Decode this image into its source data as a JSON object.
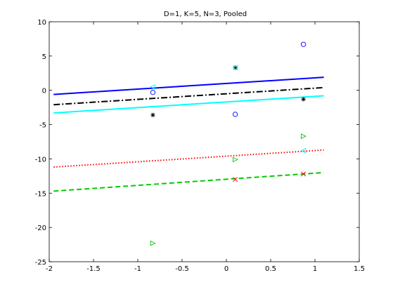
{
  "chart_data": {
    "type": "scatter",
    "title": "D=1, K=5, N=3, Pooled",
    "xlabel": "",
    "ylabel": "",
    "xlim": [
      -2,
      1.5
    ],
    "ylim": [
      -25,
      10
    ],
    "xticks": [
      -2,
      -1.5,
      -1,
      -0.5,
      0,
      0.5,
      1,
      1.5
    ],
    "yticks": [
      -25,
      -20,
      -15,
      -10,
      -5,
      0,
      5,
      10
    ],
    "xtick_labels": [
      "-2",
      "-1.5",
      "-1",
      "-0.5",
      "0",
      "0.5",
      "1",
      "1.5"
    ],
    "ytick_labels": [
      "-25",
      "-20",
      "-15",
      "-10",
      "-5",
      "0",
      "5",
      "10"
    ],
    "grid": false,
    "legend": "none",
    "series": [
      {
        "color": "#0000ff",
        "marker": "circle",
        "line_style": "solid",
        "line": {
          "x": [
            -1.95,
            1.1
          ],
          "y": [
            -0.6,
            1.9
          ]
        },
        "points": {
          "x": [
            -0.83,
            0.1,
            0.87
          ],
          "y": [
            -0.3,
            -3.5,
            6.7
          ]
        }
      },
      {
        "color": "#000000",
        "marker": "star",
        "line_style": "dashdot",
        "line": {
          "x": [
            -1.95,
            1.1
          ],
          "y": [
            -2.1,
            0.4
          ]
        },
        "points": {
          "x": [
            -0.83,
            0.1,
            0.87
          ],
          "y": [
            -3.6,
            3.3,
            -1.3
          ]
        }
      },
      {
        "color": "#00ffff",
        "marker": "triangle-left",
        "line_style": "solid",
        "line": {
          "x": [
            -1.95,
            1.1
          ],
          "y": [
            -3.3,
            -0.8
          ]
        },
        "points": {
          "x": [
            -0.83,
            0.1,
            0.87
          ],
          "y": [
            0.5,
            3.3,
            -8.8
          ]
        }
      },
      {
        "color": "#ff0000",
        "marker": "x",
        "line_style": "dotted",
        "line": {
          "x": [
            -1.95,
            1.1
          ],
          "y": [
            -11.2,
            -8.7
          ]
        },
        "points": {
          "x": [
            0.1,
            0.87
          ],
          "y": [
            -13.0,
            -12.2
          ]
        }
      },
      {
        "color": "#00cc00",
        "marker": "triangle-right",
        "line_style": "dashed",
        "line": {
          "x": [
            -1.95,
            1.1
          ],
          "y": [
            -14.7,
            -12.0
          ]
        },
        "points": {
          "x": [
            -0.83,
            0.1,
            0.87
          ],
          "y": [
            -22.3,
            -10.1,
            -6.7
          ]
        }
      }
    ]
  }
}
